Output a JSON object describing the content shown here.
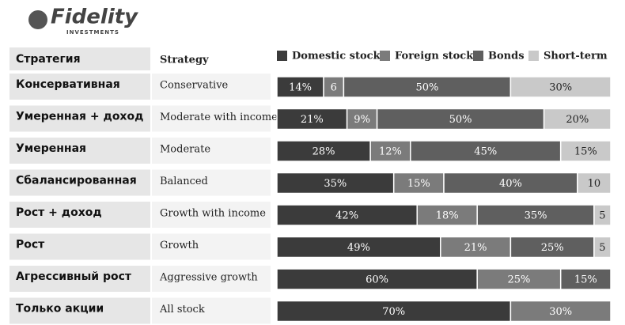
{
  "logo": {
    "name": "Fidelity",
    "tagline": "INVESTMENTS"
  },
  "chart_data": {
    "type": "stacked-bar",
    "header_ru": "Стратегия",
    "header_en": "Strategy",
    "labels_ru": [
      "Консервативная",
      "Умеренная + доход",
      "Умеренная",
      "Сбалансированная",
      "Рост + доход",
      "Рост",
      "Агрессивный рост",
      "Только акции"
    ],
    "categories": [
      "Conservative",
      "Moderate with income",
      "Moderate",
      "Balanced",
      "Growth with income",
      "Growth",
      "Aggressive growth",
      "All stock"
    ],
    "xlim": [
      0,
      100
    ],
    "series": [
      {
        "name": "Domestic stock",
        "color": "#3b3b3b",
        "values": [
          14,
          21,
          28,
          35,
          42,
          49,
          60,
          70
        ],
        "value_labels": [
          "14%",
          "21%",
          "28%",
          "35%",
          "42%",
          "49%",
          "60%",
          "70%"
        ]
      },
      {
        "name": "Foreign stock",
        "color": "#7b7b7b",
        "values": [
          6,
          9,
          12,
          15,
          18,
          21,
          25,
          30
        ],
        "value_labels": [
          "6",
          "9%",
          "12%",
          "15%",
          "18%",
          "21%",
          "25%",
          "30%"
        ]
      },
      {
        "name": "Bonds",
        "color": "#5f5f5f",
        "values": [
          50,
          50,
          45,
          40,
          35,
          25,
          15,
          0
        ],
        "value_labels": [
          "50%",
          "50%",
          "45%",
          "40%",
          "35%",
          "25%",
          "15%",
          null
        ]
      },
      {
        "name": "Short-term",
        "color": "#c9c9c9",
        "values": [
          30,
          20,
          15,
          10,
          5,
          5,
          0,
          0
        ],
        "value_labels": [
          "30%",
          "20%",
          "15%",
          "10",
          "5",
          "5",
          null,
          null
        ]
      }
    ]
  }
}
